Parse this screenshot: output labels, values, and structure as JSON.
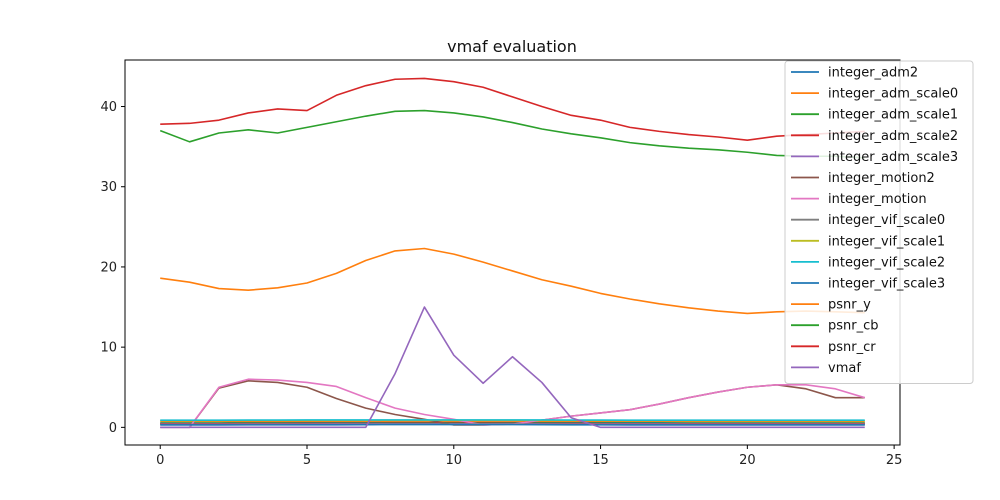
{
  "chart_data": {
    "type": "line",
    "title": "vmaf evaluation",
    "xlabel": "",
    "ylabel": "",
    "xlim": [
      -1.2,
      25.2
    ],
    "ylim": [
      -2.2,
      45.8
    ],
    "x_ticks": [
      0,
      5,
      10,
      15,
      20,
      25
    ],
    "y_ticks": [
      0,
      10,
      20,
      30,
      40
    ],
    "grid": false,
    "legend_position": "right",
    "x": [
      0,
      1,
      2,
      3,
      4,
      5,
      6,
      7,
      8,
      9,
      10,
      11,
      12,
      13,
      14,
      15,
      16,
      17,
      18,
      19,
      20,
      21,
      22,
      23,
      24
    ],
    "series": [
      {
        "name": "integer_adm2",
        "color": "#1f77b4",
        "values": [
          0.55,
          0.55,
          0.55,
          0.6,
          0.6,
          0.6,
          0.6,
          0.6,
          0.62,
          0.62,
          0.62,
          0.6,
          0.6,
          0.6,
          0.58,
          0.58,
          0.56,
          0.56,
          0.55,
          0.55,
          0.55,
          0.55,
          0.55,
          0.55,
          0.55
        ]
      },
      {
        "name": "integer_adm_scale0",
        "color": "#ff7f0e",
        "values": [
          0.75,
          0.75,
          0.75,
          0.75,
          0.75,
          0.77,
          0.77,
          0.77,
          0.78,
          0.78,
          0.78,
          0.78,
          0.78,
          0.77,
          0.77,
          0.76,
          0.76,
          0.76,
          0.75,
          0.75,
          0.75,
          0.75,
          0.75,
          0.75,
          0.74
        ]
      },
      {
        "name": "integer_adm_scale1",
        "color": "#2ca02c",
        "values": [
          0.5,
          0.5,
          0.5,
          0.52,
          0.52,
          0.52,
          0.52,
          0.52,
          0.55,
          0.55,
          0.55,
          0.55,
          0.54,
          0.53,
          0.52,
          0.52,
          0.5,
          0.5,
          0.5,
          0.5,
          0.5,
          0.5,
          0.5,
          0.5,
          0.5
        ]
      },
      {
        "name": "integer_adm_scale2",
        "color": "#d62728",
        "values": [
          0.45,
          0.45,
          0.45,
          0.46,
          0.46,
          0.47,
          0.47,
          0.48,
          0.5,
          0.5,
          0.5,
          0.5,
          0.49,
          0.48,
          0.47,
          0.46,
          0.45,
          0.45,
          0.45,
          0.45,
          0.45,
          0.45,
          0.45,
          0.45,
          0.45
        ]
      },
      {
        "name": "integer_adm_scale3",
        "color": "#9467bd",
        "values": [
          0.4,
          0.4,
          0.4,
          0.42,
          0.42,
          0.42,
          0.43,
          0.43,
          0.45,
          0.45,
          0.45,
          0.44,
          0.44,
          0.43,
          0.42,
          0.42,
          0.41,
          0.41,
          0.4,
          0.4,
          0.4,
          0.4,
          0.4,
          0.4,
          0.4
        ]
      },
      {
        "name": "integer_motion2",
        "color": "#8c564b",
        "values": [
          0,
          0,
          4.9,
          5.8,
          5.6,
          5.0,
          3.6,
          2.4,
          1.6,
          1.0,
          0.3,
          0.3,
          0.4,
          0.9,
          1.4,
          1.8,
          2.2,
          2.9,
          3.7,
          4.4,
          5.0,
          5.3,
          4.8,
          3.7,
          3.7
        ]
      },
      {
        "name": "integer_motion",
        "color": "#e377c2",
        "values": [
          0,
          0,
          5.0,
          6.0,
          5.9,
          5.6,
          5.1,
          3.7,
          2.4,
          1.6,
          1.0,
          0.3,
          0.4,
          0.9,
          1.4,
          1.8,
          2.2,
          2.9,
          3.7,
          4.4,
          5.0,
          5.3,
          5.3,
          4.8,
          3.7
        ]
      },
      {
        "name": "integer_vif_scale0",
        "color": "#7f7f7f",
        "values": [
          0.35,
          0.35,
          0.35,
          0.36,
          0.36,
          0.37,
          0.37,
          0.38,
          0.4,
          0.4,
          0.4,
          0.39,
          0.39,
          0.38,
          0.37,
          0.36,
          0.35,
          0.35,
          0.35,
          0.35,
          0.35,
          0.35,
          0.35,
          0.35,
          0.35
        ]
      },
      {
        "name": "integer_vif_scale1",
        "color": "#bcbd22",
        "values": [
          0.85,
          0.85,
          0.86,
          0.87,
          0.87,
          0.88,
          0.88,
          0.88,
          0.9,
          0.9,
          0.9,
          0.89,
          0.89,
          0.88,
          0.87,
          0.87,
          0.86,
          0.86,
          0.86,
          0.85,
          0.85,
          0.85,
          0.85,
          0.85,
          0.84
        ]
      },
      {
        "name": "integer_vif_scale2",
        "color": "#17becf",
        "values": [
          0.9,
          0.9,
          0.9,
          0.91,
          0.91,
          0.92,
          0.92,
          0.92,
          0.93,
          0.93,
          0.93,
          0.92,
          0.92,
          0.92,
          0.91,
          0.91,
          0.9,
          0.9,
          0.9,
          0.9,
          0.9,
          0.9,
          0.9,
          0.9,
          0.9
        ]
      },
      {
        "name": "integer_vif_scale3",
        "color": "#1f77b4",
        "values": [
          0.3,
          0.3,
          0.3,
          0.31,
          0.31,
          0.32,
          0.32,
          0.33,
          0.35,
          0.35,
          0.35,
          0.34,
          0.34,
          0.33,
          0.32,
          0.31,
          0.3,
          0.3,
          0.3,
          0.3,
          0.3,
          0.3,
          0.3,
          0.3,
          0.3
        ]
      },
      {
        "name": "psnr_y",
        "color": "#ff7f0e",
        "values": [
          18.6,
          18.1,
          17.3,
          17.1,
          17.4,
          18.0,
          19.2,
          20.8,
          22.0,
          22.3,
          21.6,
          20.6,
          19.5,
          18.4,
          17.6,
          16.7,
          16.0,
          15.4,
          14.9,
          14.5,
          14.2,
          14.4,
          14.5,
          14.4,
          14.3
        ]
      },
      {
        "name": "psnr_cb",
        "color": "#2ca02c",
        "values": [
          37.0,
          35.6,
          36.7,
          37.1,
          36.7,
          37.4,
          38.1,
          38.8,
          39.4,
          39.5,
          39.2,
          38.7,
          38.0,
          37.2,
          36.6,
          36.1,
          35.5,
          35.1,
          34.8,
          34.6,
          34.3,
          33.9,
          33.8,
          33.8,
          33.6
        ]
      },
      {
        "name": "psnr_cr",
        "color": "#d62728",
        "values": [
          37.8,
          37.9,
          38.3,
          39.2,
          39.7,
          39.5,
          41.4,
          42.6,
          43.4,
          43.5,
          43.1,
          42.4,
          41.2,
          40.0,
          38.9,
          38.3,
          37.4,
          36.9,
          36.5,
          36.2,
          35.8,
          36.3,
          36.5,
          36.7,
          36.9
        ]
      },
      {
        "name": "vmaf",
        "color": "#9467bd",
        "values": [
          0,
          0,
          0,
          0,
          0,
          0,
          0,
          0,
          6.7,
          15.0,
          9.0,
          5.5,
          8.8,
          5.6,
          1.2,
          0,
          0,
          0,
          0,
          0,
          0,
          0,
          0,
          0,
          0
        ]
      }
    ]
  }
}
